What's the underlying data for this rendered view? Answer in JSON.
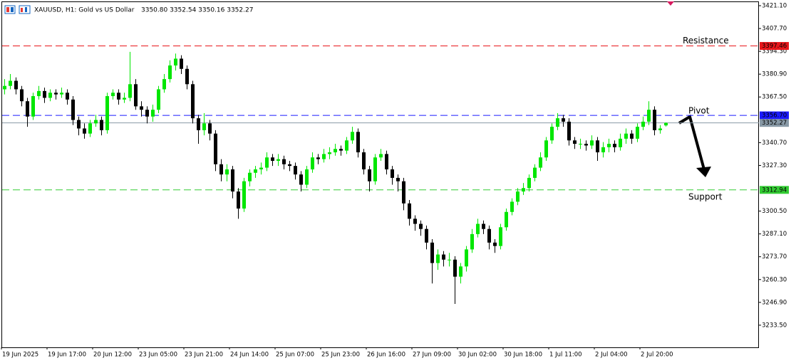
{
  "chart_data": {
    "type": "candlestick",
    "symbol_title": "XAUUSD, H1:  Gold vs US Dollar",
    "ohlc_label": "3350.80 3352.54 3350.16 3352.27",
    "categories": [
      "19 Jun 2025",
      null,
      null,
      null,
      null,
      null,
      null,
      null,
      "19 Jun 17:00",
      null,
      null,
      null,
      null,
      null,
      null,
      null,
      "20 Jun 12:00",
      null,
      null,
      null,
      null,
      null,
      null,
      null,
      "23 Jun 05:00",
      null,
      null,
      null,
      null,
      null,
      null,
      null,
      "23 Jun 21:00",
      null,
      null,
      null,
      null,
      null,
      null,
      null,
      "24 Jun 14:00",
      null,
      null,
      null,
      null,
      null,
      null,
      null,
      "25 Jun 07:00",
      null,
      null,
      null,
      null,
      null,
      null,
      null,
      "25 Jun 23:00",
      null,
      null,
      null,
      null,
      null,
      null,
      null,
      "26 Jun 16:00",
      null,
      null,
      null,
      null,
      null,
      null,
      null,
      "27 Jun 09:00",
      null,
      null,
      null,
      null,
      null,
      null,
      null,
      "30 Jun 02:00",
      null,
      null,
      null,
      null,
      null,
      null,
      null,
      "30 Jun 18:00",
      null,
      null,
      null,
      null,
      null,
      null,
      null,
      "1 Jul 11:00",
      null,
      null,
      null,
      null,
      null,
      null,
      null,
      "2 Jul 04:00",
      null,
      null,
      null,
      null,
      null,
      null,
      null,
      "2 Jul 20:00",
      null,
      null,
      null,
      null
    ],
    "open": [
      3372,
      3374,
      3377,
      3372,
      3365,
      3356,
      3368,
      3371,
      3367,
      3370,
      3369,
      3370,
      3366,
      3354,
      3349,
      3346,
      3352,
      3354,
      3348,
      3368,
      3370,
      3366,
      3367,
      3375,
      3362,
      3360,
      3356,
      3360,
      3372,
      3378,
      3386,
      3390,
      3384,
      3375,
      3355,
      3348,
      3352,
      3346,
      3328,
      3322,
      3325,
      3312,
      3302,
      3318,
      3323,
      3325,
      3326,
      3332,
      3330,
      3331,
      3328,
      3327,
      3322,
      3316,
      3325,
      3332,
      3331,
      3334,
      3335,
      3337,
      3336,
      3342,
      3347,
      3335,
      3325,
      3318,
      3332,
      3334,
      3325,
      3320,
      3318,
      3305,
      3296,
      3293,
      3290,
      3282,
      3270,
      3275,
      3272,
      3272,
      3262,
      3268,
      3278,
      3287,
      3293,
      3290,
      3282,
      3280,
      3291,
      3300,
      3306,
      3312,
      3314,
      3320,
      3326,
      3332,
      3342,
      3350,
      3355,
      3353,
      3342,
      3340,
      3340,
      3339,
      3342,
      3335,
      3338,
      3340,
      3338,
      3343,
      3346,
      3343,
      3350,
      3353,
      3360,
      3348,
      3350.8
    ],
    "high": [
      3378,
      3381,
      3379,
      3374,
      3367,
      3370,
      3374,
      3373,
      3372,
      3372,
      3373,
      3372,
      3368,
      3356,
      3352,
      3354,
      3357,
      3356,
      3370,
      3372,
      3372,
      3370,
      3394,
      3378,
      3365,
      3362,
      3363,
      3374,
      3381,
      3389,
      3393,
      3392,
      3386,
      3377,
      3357,
      3358,
      3354,
      3348,
      3331,
      3328,
      3327,
      3314,
      3320,
      3325,
      3327,
      3329,
      3335,
      3334,
      3334,
      3333,
      3330,
      3329,
      3324,
      3327,
      3335,
      3334,
      3337,
      3338,
      3340,
      3339,
      3344,
      3350,
      3349,
      3337,
      3327,
      3334,
      3337,
      3336,
      3327,
      3322,
      3320,
      3307,
      3298,
      3295,
      3292,
      3284,
      3278,
      3277,
      3276,
      3274,
      3270,
      3280,
      3290,
      3296,
      3295,
      3292,
      3284,
      3293,
      3302,
      3308,
      3314,
      3317,
      3322,
      3328,
      3335,
      3344,
      3352,
      3358,
      3357,
      3355,
      3344,
      3343,
      3342,
      3345,
      3344,
      3341,
      3343,
      3342,
      3346,
      3349,
      3348,
      3352,
      3356,
      3365,
      3362,
      3351,
      3352.54
    ],
    "low": [
      3369,
      3372,
      3369,
      3362,
      3350,
      3354,
      3366,
      3364,
      3365,
      3366,
      3367,
      3363,
      3351,
      3345,
      3343,
      3344,
      3350,
      3345,
      3346,
      3366,
      3363,
      3364,
      3365,
      3360,
      3356,
      3352,
      3353,
      3358,
      3370,
      3376,
      3383,
      3381,
      3372,
      3352,
      3340,
      3345,
      3342,
      3324,
      3318,
      3318,
      3308,
      3296,
      3300,
      3315,
      3320,
      3322,
      3324,
      3327,
      3327,
      3325,
      3324,
      3319,
      3312,
      3314,
      3323,
      3328,
      3329,
      3331,
      3333,
      3333,
      3334,
      3340,
      3332,
      3322,
      3312,
      3316,
      3330,
      3322,
      3316,
      3312,
      3301,
      3292,
      3289,
      3286,
      3278,
      3258,
      3266,
      3268,
      3268,
      3246,
      3258,
      3265,
      3276,
      3285,
      3287,
      3278,
      3276,
      3278,
      3289,
      3298,
      3304,
      3310,
      3312,
      3318,
      3324,
      3330,
      3340,
      3348,
      3350,
      3339,
      3337,
      3337,
      3336,
      3337,
      3330,
      3332,
      3335,
      3335,
      3336,
      3340,
      3340,
      3341,
      3348,
      3351,
      3345,
      3346,
      3350.16
    ],
    "close": [
      3374,
      3377,
      3372,
      3365,
      3356,
      3368,
      3371,
      3367,
      3370,
      3369,
      3370,
      3366,
      3354,
      3349,
      3346,
      3352,
      3354,
      3348,
      3368,
      3370,
      3366,
      3367,
      3375,
      3362,
      3360,
      3356,
      3360,
      3372,
      3378,
      3386,
      3390,
      3384,
      3375,
      3355,
      3348,
      3352,
      3346,
      3328,
      3322,
      3325,
      3312,
      3302,
      3318,
      3323,
      3325,
      3326,
      3332,
      3330,
      3331,
      3328,
      3327,
      3322,
      3316,
      3325,
      3332,
      3331,
      3334,
      3335,
      3337,
      3336,
      3342,
      3347,
      3335,
      3325,
      3318,
      3332,
      3334,
      3325,
      3320,
      3318,
      3305,
      3296,
      3293,
      3290,
      3282,
      3270,
      3275,
      3272,
      3272,
      3262,
      3268,
      3278,
      3287,
      3293,
      3290,
      3282,
      3280,
      3291,
      3300,
      3306,
      3312,
      3314,
      3320,
      3326,
      3332,
      3342,
      3350,
      3355,
      3353,
      3342,
      3340,
      3340,
      3339,
      3342,
      3335,
      3338,
      3340,
      3338,
      3343,
      3346,
      3343,
      3350,
      3353,
      3360,
      3348,
      3349,
      3352.27
    ],
    "up_color": "#00e600",
    "down_color": "#000000",
    "ylim": [
      3220.5,
      3423.6
    ],
    "yticks": [
      {
        "value": 3421.1,
        "label": "3421.10"
      },
      {
        "value": 3407.7,
        "label": "3407.70"
      },
      {
        "value": 3394.3,
        "label": "3394.30"
      },
      {
        "value": 3380.9,
        "label": "3380.90"
      },
      {
        "value": 3367.5,
        "label": "3367.50"
      },
      {
        "value": 3340.7,
        "label": "3340.70"
      },
      {
        "value": 3327.3,
        "label": "3327.30"
      },
      {
        "value": 3300.5,
        "label": "3300.50"
      },
      {
        "value": 3287.1,
        "label": "3287.10"
      },
      {
        "value": 3273.7,
        "label": "3273.70"
      },
      {
        "value": 3260.3,
        "label": "3260.30"
      },
      {
        "value": 3246.9,
        "label": "3246.90"
      },
      {
        "value": 3233.5,
        "label": "3233.50"
      }
    ],
    "grid": false,
    "levels": [
      {
        "name": "Resistance",
        "value": 3397.46,
        "color": "#e8161a"
      },
      {
        "name": "Pivot",
        "value": 3356.7,
        "value_label": "3356.70",
        "color": "#1a1aff"
      },
      {
        "name": "Support",
        "value": 3312.94,
        "color": "#33cc33"
      }
    ],
    "last_price": {
      "value": 3352.27,
      "color": "#8899a6"
    }
  }
}
